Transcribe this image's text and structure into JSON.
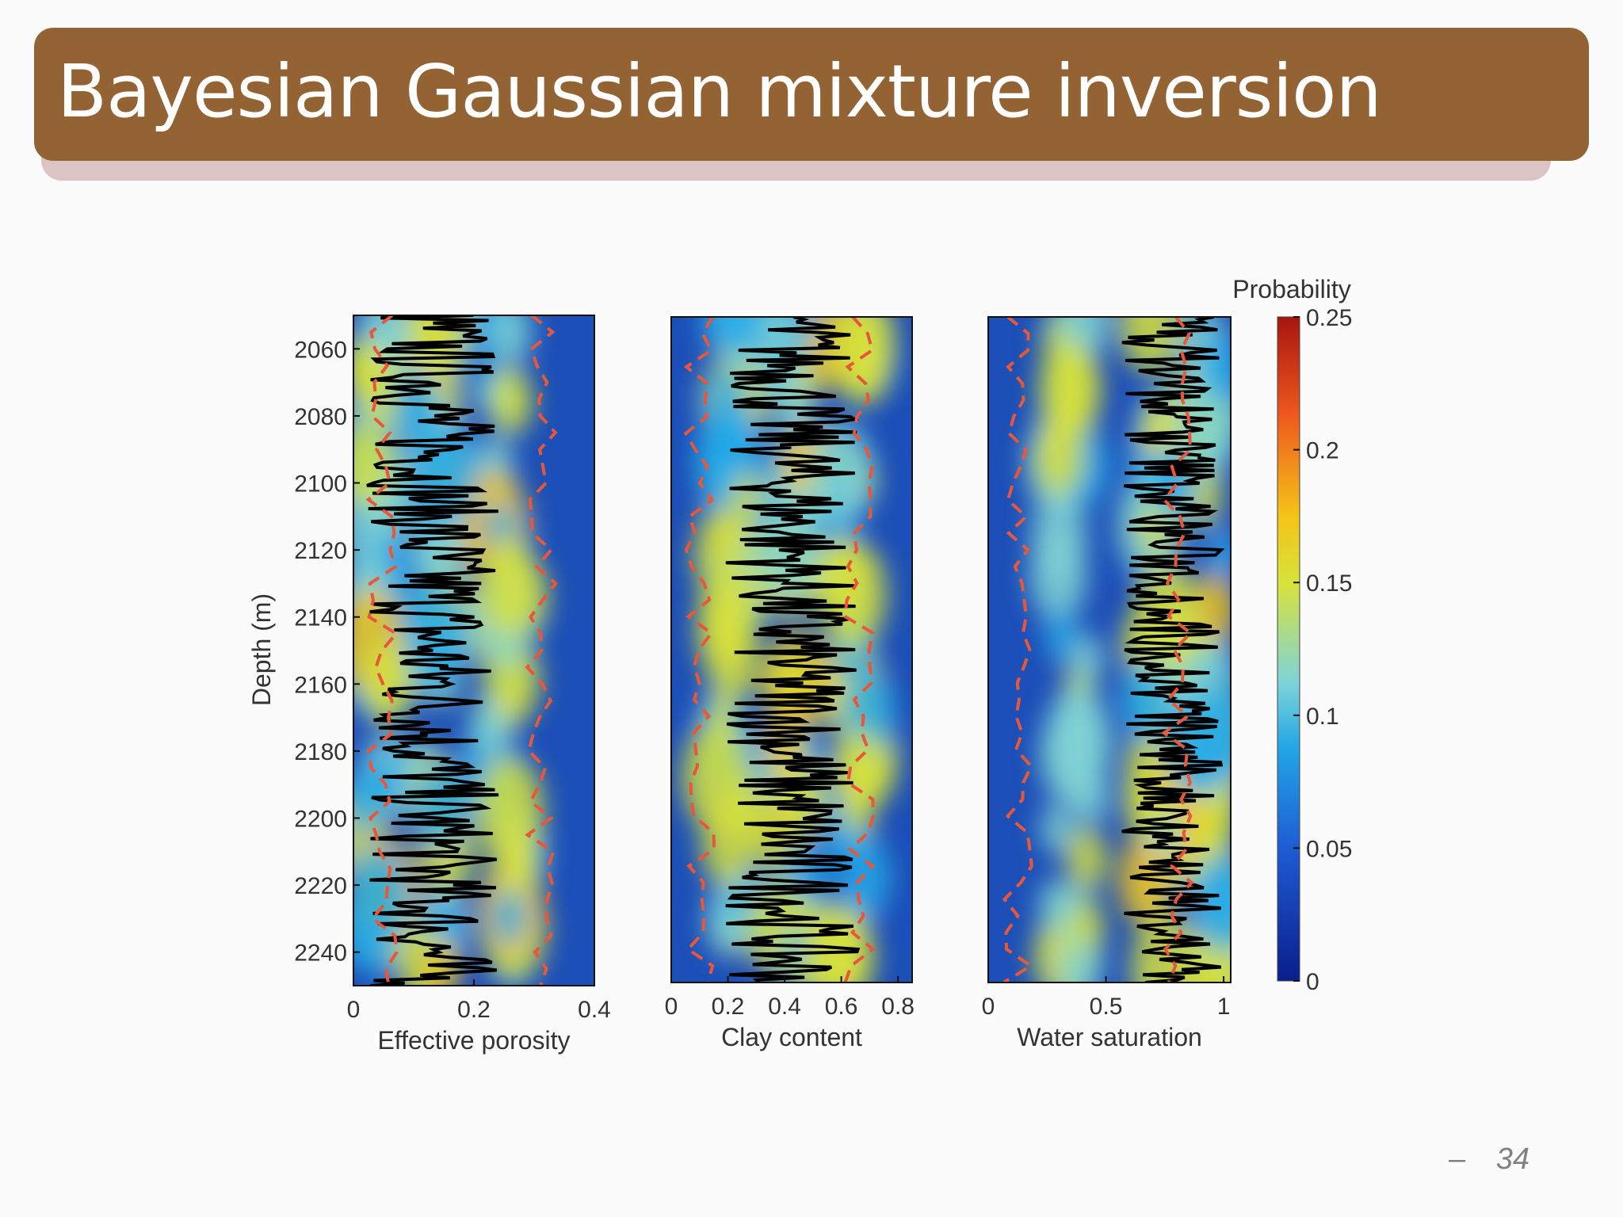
{
  "slide": {
    "title": "Bayesian Gaussian mixture inversion",
    "page_number": "34",
    "page_dash": "–"
  },
  "chart_data": {
    "type": "heatmap",
    "ylabel": "Depth (m)",
    "ylim": [
      2050,
      2250
    ],
    "yticks": [
      2060,
      2080,
      2100,
      2120,
      2140,
      2160,
      2180,
      2200,
      2220,
      2240
    ],
    "ytick_labels": [
      "2060",
      "2080",
      "2100",
      "2120",
      "2140",
      "2160",
      "2180",
      "2200",
      "2220",
      "2240"
    ],
    "colorbar": {
      "title": "Probability",
      "range": [
        0,
        0.25
      ],
      "ticks": [
        0,
        0.05,
        0.1,
        0.15,
        0.2,
        0.25
      ],
      "tick_labels": [
        "0",
        "0.05",
        "0.1",
        "0.15",
        "0.2",
        "0.25"
      ],
      "colormap": "jet"
    },
    "panels": [
      {
        "xlabel": "Effective porosity",
        "xlim": [
          0,
          0.4
        ],
        "xticks": [
          0,
          0.2,
          0.4
        ],
        "xtick_labels": [
          "0",
          "0.2",
          "0.4"
        ]
      },
      {
        "xlabel": "Clay content",
        "xlim": [
          0,
          0.85
        ],
        "xticks": [
          0,
          0.2,
          0.4,
          0.6,
          0.8
        ],
        "xtick_labels": [
          "0",
          "0.2",
          "0.4",
          "0.6",
          "0.8"
        ]
      },
      {
        "xlabel": "Water saturation",
        "xlim": [
          0,
          1.03
        ],
        "xticks": [
          0,
          0.5,
          1
        ],
        "xtick_labels": [
          "0",
          "0.5",
          "1"
        ]
      }
    ],
    "series_styles": {
      "measured_log": "#000000",
      "confidence_bounds": "#e8573a"
    }
  }
}
